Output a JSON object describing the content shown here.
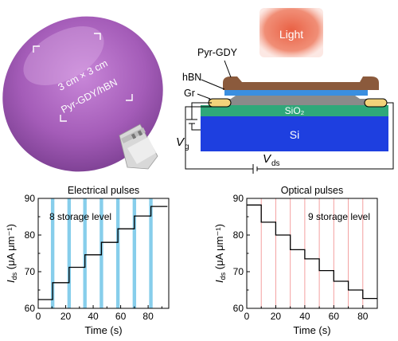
{
  "wafer": {
    "size_label": "3 cm × 3 cm",
    "material_label": "Pyr-GDY/hBN"
  },
  "device": {
    "light_label": "Light",
    "layer_pyr": "Pyr-GDY",
    "layer_hbn": "hBN",
    "layer_gr": "Gr",
    "sio2": "SiO₂",
    "si": "Si",
    "vg_main": "V",
    "vg_sub": "g",
    "vds_main": "V",
    "vds_sub": "ds"
  },
  "colors": {
    "pyr_gdy": "#8B5A3C",
    "hbn": "#3A8FE0",
    "graphene": "#8A8A8A",
    "sio2": "#2FA87A",
    "si": "#1E3FE0",
    "electrode": "#F2D27A",
    "light": "#E85A3C",
    "electrical_pulse": "#87CEEB",
    "optical_pulse": "#F4A0A0",
    "wafer": "#B070C0"
  },
  "chart_data": [
    {
      "type": "line",
      "title": "Electrical pulses",
      "annotation": "8 storage level",
      "xlabel": "Time (s)",
      "ylabel_main": "I",
      "ylabel_sub": "ds",
      "ylabel_unit": " (μA μm⁻¹)",
      "xlim": [
        0,
        95
      ],
      "ylim": [
        60,
        90
      ],
      "xticks": [
        0,
        20,
        40,
        60,
        80
      ],
      "yticks": [
        60,
        70,
        80,
        90
      ],
      "x": [
        0,
        10.5,
        10.5,
        22.5,
        22.5,
        34,
        34,
        46,
        46,
        58,
        58,
        70,
        70,
        82,
        82,
        94
      ],
      "values": [
        62.4,
        62.4,
        67,
        67,
        71.2,
        71.2,
        74.6,
        74.6,
        78,
        78,
        81.7,
        81.7,
        85.2,
        85.2,
        87.8,
        87.8
      ],
      "pulse_starts": [
        10.5,
        22.5,
        34,
        46,
        58,
        70,
        82
      ]
    },
    {
      "type": "line",
      "title": "Optical pulses",
      "annotation": "9 storage level",
      "xlabel": "Time (s)",
      "ylabel_main": "I",
      "ylabel_sub": "ds",
      "ylabel_unit": " (μA μm⁻¹)",
      "xlim": [
        0,
        90
      ],
      "ylim": [
        60,
        90
      ],
      "xticks": [
        0,
        20,
        40,
        60,
        80
      ],
      "yticks": [
        60,
        70,
        80,
        90
      ],
      "x": [
        0,
        10,
        10,
        20,
        20,
        30,
        30,
        40,
        40,
        50,
        50,
        60,
        60,
        70,
        70,
        80,
        80,
        90
      ],
      "values": [
        88.2,
        88.2,
        83.5,
        83.5,
        80,
        80,
        76,
        76,
        73.5,
        73.5,
        70.3,
        70.3,
        67.4,
        67.4,
        65,
        65,
        62.7,
        62.7
      ],
      "pulse_starts": [
        10,
        20,
        30,
        40,
        50,
        60,
        70,
        80
      ]
    }
  ]
}
